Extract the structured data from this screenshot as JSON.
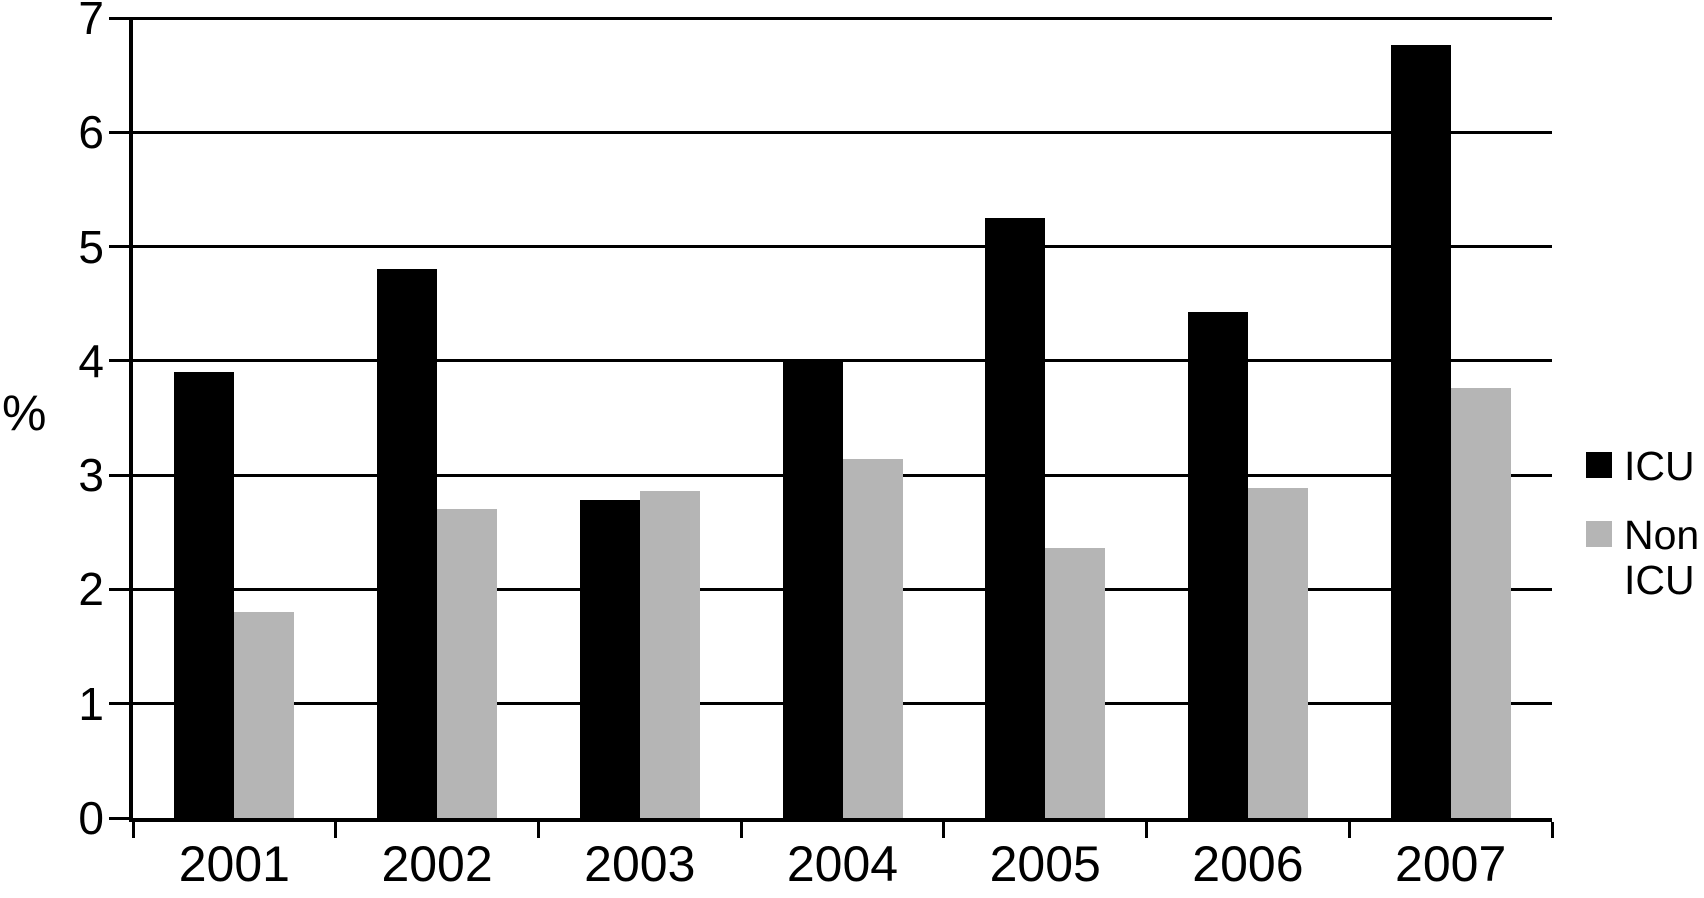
{
  "chart_data": {
    "type": "bar",
    "title": "",
    "ylabel": "%",
    "xlabel": "",
    "categories": [
      "2001",
      "2002",
      "2003",
      "2004",
      "2005",
      "2006",
      "2007"
    ],
    "series": [
      {
        "name": "ICU",
        "color": "#000000",
        "values": [
          3.9,
          4.8,
          2.78,
          4.0,
          5.25,
          4.43,
          6.76
        ]
      },
      {
        "name": "Non ICU",
        "color": "#b5b5b5",
        "values": [
          1.8,
          2.7,
          2.86,
          3.14,
          2.36,
          2.89,
          3.76
        ]
      }
    ],
    "ylim": [
      0,
      7
    ],
    "yticks": [
      "0",
      "1",
      "2",
      "3",
      "4",
      "5",
      "6",
      "7"
    ],
    "grid": "horizontal",
    "legend_position": "right"
  }
}
